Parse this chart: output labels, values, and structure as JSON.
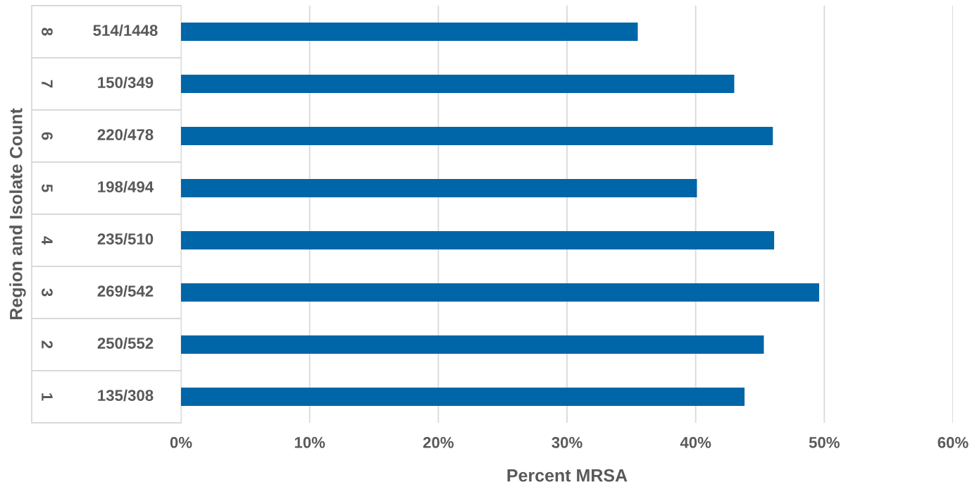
{
  "chart_data": {
    "type": "bar",
    "orientation": "horizontal",
    "ylabel": "Region and Isolate Count",
    "xlabel": "Percent MRSA",
    "categories": [
      "514/1448",
      "150/349",
      "220/478",
      "198/494",
      "235/510",
      "269/542",
      "250/552",
      "135/308"
    ],
    "values": [
      35.5,
      43.0,
      46.0,
      40.1,
      46.1,
      49.6,
      45.3,
      43.8
    ],
    "color": "#0066a8",
    "annotations": [
      "8",
      "7",
      "6",
      "5",
      "4",
      "3",
      "2",
      "1"
    ],
    "xlim": [
      0,
      60
    ],
    "xticks": [
      {
        "value": 0,
        "label": "0%"
      },
      {
        "value": 10,
        "label": "10%"
      },
      {
        "value": 20,
        "label": "20%"
      },
      {
        "value": 30,
        "label": "30%"
      },
      {
        "value": 40,
        "label": "40%"
      },
      {
        "value": 50,
        "label": "50%"
      },
      {
        "value": 60,
        "label": "60%"
      }
    ],
    "grid": "x"
  }
}
